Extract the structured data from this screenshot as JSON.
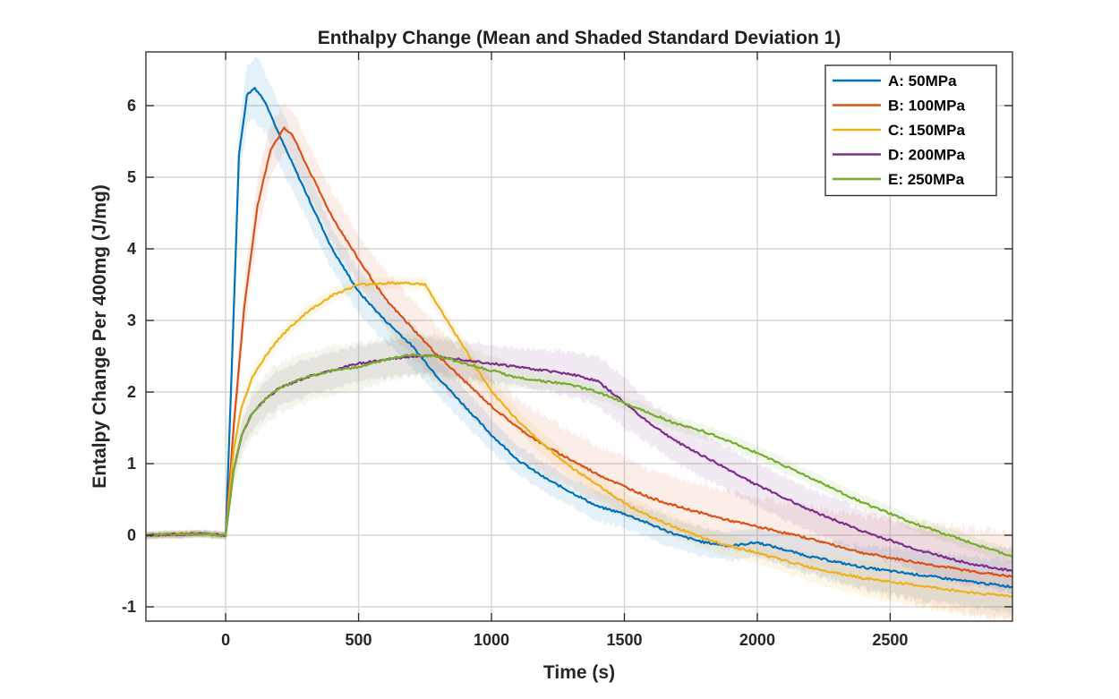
{
  "chart_data": {
    "type": "line",
    "title": "Enthalpy Change (Mean and Shaded Standard Deviation 1)",
    "xlabel": "Time (s)",
    "ylabel": "Entalpy Change Per 400mg (J/mg)",
    "xlim": [
      -300,
      2960
    ],
    "ylim": [
      -1.2,
      6.75
    ],
    "xticks": [
      0,
      500,
      1000,
      1500,
      2000,
      2500
    ],
    "xtick_labels": [
      "0",
      "500",
      "1000",
      "1500",
      "2000",
      "2500"
    ],
    "yticks": [
      -1,
      0,
      1,
      2,
      3,
      4,
      5,
      6
    ],
    "ytick_labels": [
      "-1",
      "0",
      "1",
      "2",
      "3",
      "4",
      "5",
      "6"
    ],
    "grid": true,
    "legend_position": "top-right",
    "series": [
      {
        "name": "A: 50MPa",
        "color": "#0072BD",
        "x": [
          -300,
          -100,
          0,
          20,
          50,
          80,
          110,
          150,
          200,
          300,
          400,
          500,
          600,
          700,
          800,
          900,
          1000,
          1100,
          1200,
          1300,
          1400,
          1500,
          1600,
          1700,
          1800,
          1900,
          2000,
          2200,
          2400,
          2600,
          2800,
          2960
        ],
        "y": [
          0,
          0.02,
          0,
          2.0,
          5.3,
          6.15,
          6.25,
          6.05,
          5.6,
          4.8,
          4.0,
          3.4,
          3.0,
          2.65,
          2.2,
          1.8,
          1.4,
          1.05,
          0.8,
          0.6,
          0.4,
          0.3,
          0.15,
          0.0,
          -0.1,
          -0.15,
          -0.1,
          -0.3,
          -0.45,
          -0.55,
          -0.65,
          -0.72
        ],
        "sd": [
          0.05,
          0.05,
          0.05,
          0.3,
          0.4,
          0.45,
          0.45,
          0.42,
          0.4,
          0.35,
          0.3,
          0.3,
          0.3,
          0.3,
          0.25,
          0.25,
          0.22,
          0.2,
          0.2,
          0.2,
          0.2,
          0.2,
          0.2,
          0.2,
          0.2,
          0.2,
          0.2,
          0.25,
          0.3,
          0.35,
          0.35,
          0.35
        ]
      },
      {
        "name": "B: 100MPa",
        "color": "#D95319",
        "x": [
          -300,
          -100,
          0,
          30,
          70,
          120,
          170,
          220,
          250,
          300,
          400,
          500,
          600,
          700,
          800,
          900,
          1000,
          1100,
          1200,
          1300,
          1400,
          1500,
          1600,
          1700,
          1800,
          1900,
          2000,
          2200,
          2400,
          2600,
          2800,
          2960
        ],
        "y": [
          0,
          0.02,
          0,
          1.5,
          3.2,
          4.6,
          5.4,
          5.68,
          5.6,
          5.2,
          4.45,
          3.85,
          3.3,
          2.9,
          2.5,
          2.15,
          1.8,
          1.5,
          1.25,
          1.05,
          0.85,
          0.68,
          0.52,
          0.4,
          0.3,
          0.2,
          0.12,
          -0.05,
          -0.25,
          -0.38,
          -0.5,
          -0.58
        ],
        "sd": [
          0.05,
          0.05,
          0.05,
          0.3,
          0.35,
          0.4,
          0.35,
          0.35,
          0.35,
          0.35,
          0.35,
          0.35,
          0.4,
          0.4,
          0.4,
          0.4,
          0.4,
          0.4,
          0.4,
          0.4,
          0.4,
          0.4,
          0.4,
          0.4,
          0.4,
          0.4,
          0.4,
          0.45,
          0.5,
          0.55,
          0.6,
          0.6
        ]
      },
      {
        "name": "C: 150MPa",
        "color": "#EDB120",
        "x": [
          -300,
          -100,
          0,
          30,
          60,
          100,
          150,
          200,
          300,
          400,
          500,
          600,
          700,
          750,
          800,
          900,
          1000,
          1100,
          1200,
          1300,
          1400,
          1500,
          1600,
          1700,
          1800,
          1900,
          2000,
          2200,
          2400,
          2600,
          2800,
          2960
        ],
        "y": [
          0,
          0.02,
          0,
          1.2,
          1.8,
          2.2,
          2.5,
          2.75,
          3.1,
          3.35,
          3.5,
          3.52,
          3.52,
          3.5,
          3.2,
          2.6,
          2.0,
          1.6,
          1.25,
          0.95,
          0.7,
          0.45,
          0.25,
          0.1,
          -0.05,
          -0.15,
          -0.25,
          -0.45,
          -0.6,
          -0.7,
          -0.8,
          -0.85
        ],
        "sd": [
          0.05,
          0.05,
          0.05,
          0.1,
          0.1,
          0.1,
          0.1,
          0.1,
          0.1,
          0.1,
          0.08,
          0.08,
          0.08,
          0.1,
          0.1,
          0.12,
          0.15,
          0.15,
          0.15,
          0.15,
          0.15,
          0.15,
          0.15,
          0.15,
          0.15,
          0.15,
          0.15,
          0.2,
          0.25,
          0.3,
          0.3,
          0.3
        ]
      },
      {
        "name": "D: 200MPa",
        "color": "#7E2F8E",
        "x": [
          -300,
          -100,
          0,
          30,
          60,
          100,
          150,
          200,
          300,
          400,
          500,
          600,
          700,
          800,
          900,
          1000,
          1100,
          1200,
          1300,
          1400,
          1500,
          1600,
          1700,
          1800,
          1900,
          2000,
          2200,
          2400,
          2600,
          2800,
          2960
        ],
        "y": [
          0,
          0.02,
          0,
          0.9,
          1.4,
          1.7,
          1.9,
          2.05,
          2.2,
          2.3,
          2.4,
          2.45,
          2.5,
          2.5,
          2.45,
          2.4,
          2.35,
          2.3,
          2.25,
          2.15,
          1.85,
          1.55,
          1.3,
          1.1,
          0.9,
          0.7,
          0.35,
          0.05,
          -0.2,
          -0.4,
          -0.5
        ],
        "sd": [
          0.05,
          0.05,
          0.05,
          0.15,
          0.2,
          0.25,
          0.25,
          0.25,
          0.25,
          0.25,
          0.25,
          0.25,
          0.25,
          0.25,
          0.25,
          0.25,
          0.25,
          0.3,
          0.3,
          0.35,
          0.35,
          0.3,
          0.3,
          0.3,
          0.3,
          0.3,
          0.3,
          0.3,
          0.3,
          0.3,
          0.3
        ]
      },
      {
        "name": "E: 250MPa",
        "color": "#77AC30",
        "x": [
          -300,
          -100,
          0,
          30,
          60,
          100,
          150,
          200,
          300,
          400,
          500,
          600,
          700,
          800,
          900,
          1000,
          1100,
          1200,
          1300,
          1400,
          1500,
          1600,
          1700,
          1800,
          1900,
          2000,
          2200,
          2400,
          2600,
          2800,
          2960
        ],
        "y": [
          0,
          0.02,
          0,
          0.9,
          1.4,
          1.7,
          1.9,
          2.05,
          2.2,
          2.3,
          2.35,
          2.45,
          2.52,
          2.5,
          2.4,
          2.3,
          2.2,
          2.15,
          2.1,
          2.0,
          1.85,
          1.7,
          1.55,
          1.45,
          1.3,
          1.15,
          0.8,
          0.45,
          0.15,
          -0.1,
          -0.3
        ],
        "sd": [
          0.05,
          0.05,
          0.05,
          0.25,
          0.3,
          0.35,
          0.35,
          0.35,
          0.35,
          0.35,
          0.35,
          0.3,
          0.3,
          0.3,
          0.25,
          0.2,
          0.15,
          0.12,
          0.1,
          0.1,
          0.1,
          0.1,
          0.1,
          0.1,
          0.1,
          0.1,
          0.1,
          0.1,
          0.1,
          0.1,
          0.1
        ]
      }
    ]
  }
}
